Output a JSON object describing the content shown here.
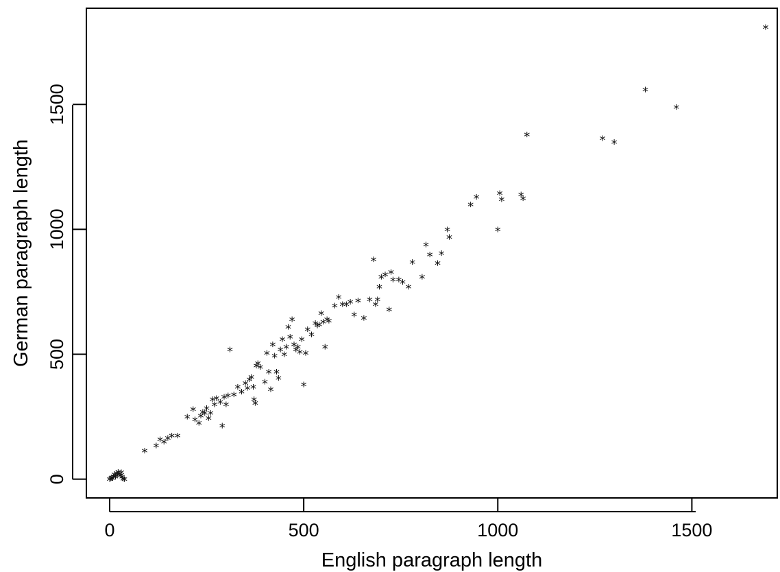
{
  "chart_data": {
    "type": "scatter",
    "title": "",
    "xlabel": "English paragraph length",
    "ylabel": "German paragraph length",
    "xlim": [
      -60,
      1720
    ],
    "ylim": [
      -75,
      1885
    ],
    "xticks": [
      0,
      500,
      1000,
      1500
    ],
    "yticks": [
      0,
      500,
      1000,
      1500
    ],
    "xtick_labels": [
      "0",
      "500",
      "1000",
      "1500"
    ],
    "ytick_labels": [
      "0",
      "500",
      "1000",
      "1500"
    ],
    "marker": "*",
    "marker_color": "#111111",
    "grid": false,
    "points": [
      [
        0,
        0
      ],
      [
        3,
        3
      ],
      [
        5,
        8
      ],
      [
        8,
        5
      ],
      [
        10,
        12
      ],
      [
        12,
        20
      ],
      [
        15,
        10
      ],
      [
        18,
        25
      ],
      [
        20,
        18
      ],
      [
        22,
        30
      ],
      [
        25,
        22
      ],
      [
        28,
        15
      ],
      [
        30,
        28
      ],
      [
        32,
        10
      ],
      [
        35,
        2
      ],
      [
        38,
        0
      ],
      [
        90,
        115
      ],
      [
        120,
        135
      ],
      [
        130,
        160
      ],
      [
        140,
        150
      ],
      [
        150,
        165
      ],
      [
        160,
        175
      ],
      [
        175,
        175
      ],
      [
        200,
        250
      ],
      [
        215,
        280
      ],
      [
        220,
        240
      ],
      [
        230,
        225
      ],
      [
        235,
        255
      ],
      [
        240,
        270
      ],
      [
        245,
        265
      ],
      [
        250,
        285
      ],
      [
        255,
        245
      ],
      [
        260,
        265
      ],
      [
        265,
        320
      ],
      [
        270,
        300
      ],
      [
        275,
        325
      ],
      [
        285,
        310
      ],
      [
        290,
        215
      ],
      [
        295,
        330
      ],
      [
        300,
        300
      ],
      [
        305,
        335
      ],
      [
        310,
        520
      ],
      [
        320,
        340
      ],
      [
        330,
        370
      ],
      [
        340,
        350
      ],
      [
        350,
        385
      ],
      [
        355,
        365
      ],
      [
        360,
        400
      ],
      [
        365,
        410
      ],
      [
        370,
        370
      ],
      [
        372,
        320
      ],
      [
        375,
        305
      ],
      [
        378,
        455
      ],
      [
        382,
        465
      ],
      [
        388,
        450
      ],
      [
        400,
        390
      ],
      [
        405,
        505
      ],
      [
        410,
        430
      ],
      [
        415,
        360
      ],
      [
        420,
        540
      ],
      [
        425,
        495
      ],
      [
        430,
        430
      ],
      [
        435,
        405
      ],
      [
        440,
        520
      ],
      [
        445,
        560
      ],
      [
        450,
        500
      ],
      [
        455,
        530
      ],
      [
        460,
        610
      ],
      [
        465,
        570
      ],
      [
        470,
        640
      ],
      [
        475,
        540
      ],
      [
        480,
        520
      ],
      [
        485,
        530
      ],
      [
        490,
        510
      ],
      [
        495,
        560
      ],
      [
        500,
        380
      ],
      [
        505,
        505
      ],
      [
        510,
        600
      ],
      [
        520,
        580
      ],
      [
        530,
        625
      ],
      [
        535,
        615
      ],
      [
        540,
        620
      ],
      [
        545,
        665
      ],
      [
        550,
        630
      ],
      [
        555,
        530
      ],
      [
        560,
        640
      ],
      [
        565,
        635
      ],
      [
        580,
        695
      ],
      [
        590,
        730
      ],
      [
        600,
        700
      ],
      [
        610,
        700
      ],
      [
        620,
        710
      ],
      [
        630,
        660
      ],
      [
        640,
        715
      ],
      [
        655,
        645
      ],
      [
        670,
        720
      ],
      [
        680,
        880
      ],
      [
        685,
        700
      ],
      [
        690,
        720
      ],
      [
        695,
        770
      ],
      [
        700,
        810
      ],
      [
        710,
        820
      ],
      [
        720,
        680
      ],
      [
        725,
        830
      ],
      [
        730,
        800
      ],
      [
        745,
        800
      ],
      [
        755,
        790
      ],
      [
        770,
        770
      ],
      [
        780,
        870
      ],
      [
        805,
        810
      ],
      [
        815,
        940
      ],
      [
        825,
        900
      ],
      [
        845,
        865
      ],
      [
        855,
        905
      ],
      [
        870,
        1000
      ],
      [
        875,
        970
      ],
      [
        930,
        1100
      ],
      [
        945,
        1130
      ],
      [
        1000,
        1000
      ],
      [
        1005,
        1145
      ],
      [
        1010,
        1120
      ],
      [
        1060,
        1140
      ],
      [
        1065,
        1125
      ],
      [
        1075,
        1380
      ],
      [
        1270,
        1365
      ],
      [
        1300,
        1350
      ],
      [
        1380,
        1560
      ],
      [
        1460,
        1490
      ],
      [
        1690,
        1810
      ]
    ]
  }
}
